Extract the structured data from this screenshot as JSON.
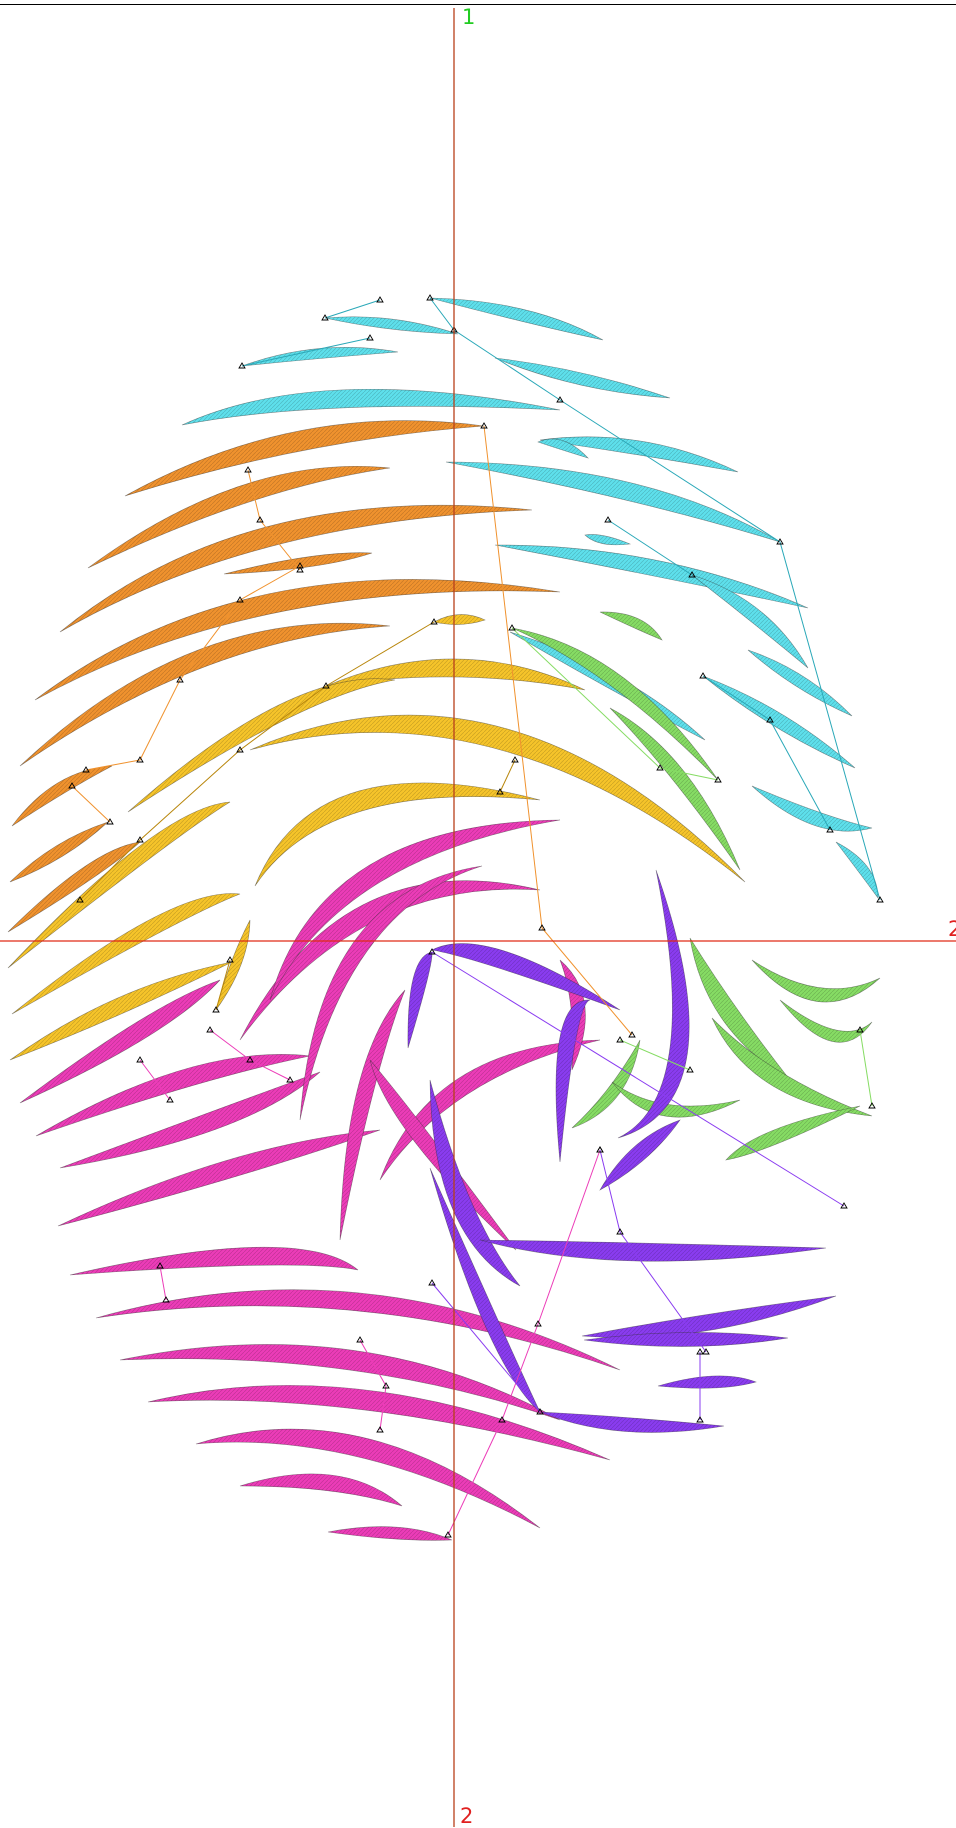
{
  "axis_labels": {
    "top": "1",
    "right": "2",
    "bottom": "2"
  },
  "colors": {
    "axis_vertical": "#b8401a",
    "axis_horizontal": "#e02a16",
    "label_top": "#22cc22",
    "label_right": "#e02020",
    "label_bottom": "#e02020",
    "cyan": "#5ee0ec",
    "orange": "#f0922e",
    "yellow": "#f6c42a",
    "green": "#86dc64",
    "magenta": "#ec3cb8",
    "violet": "#8a3cf0"
  },
  "groups": [
    "cyan",
    "orange",
    "yellow",
    "green",
    "magenta",
    "violet"
  ]
}
